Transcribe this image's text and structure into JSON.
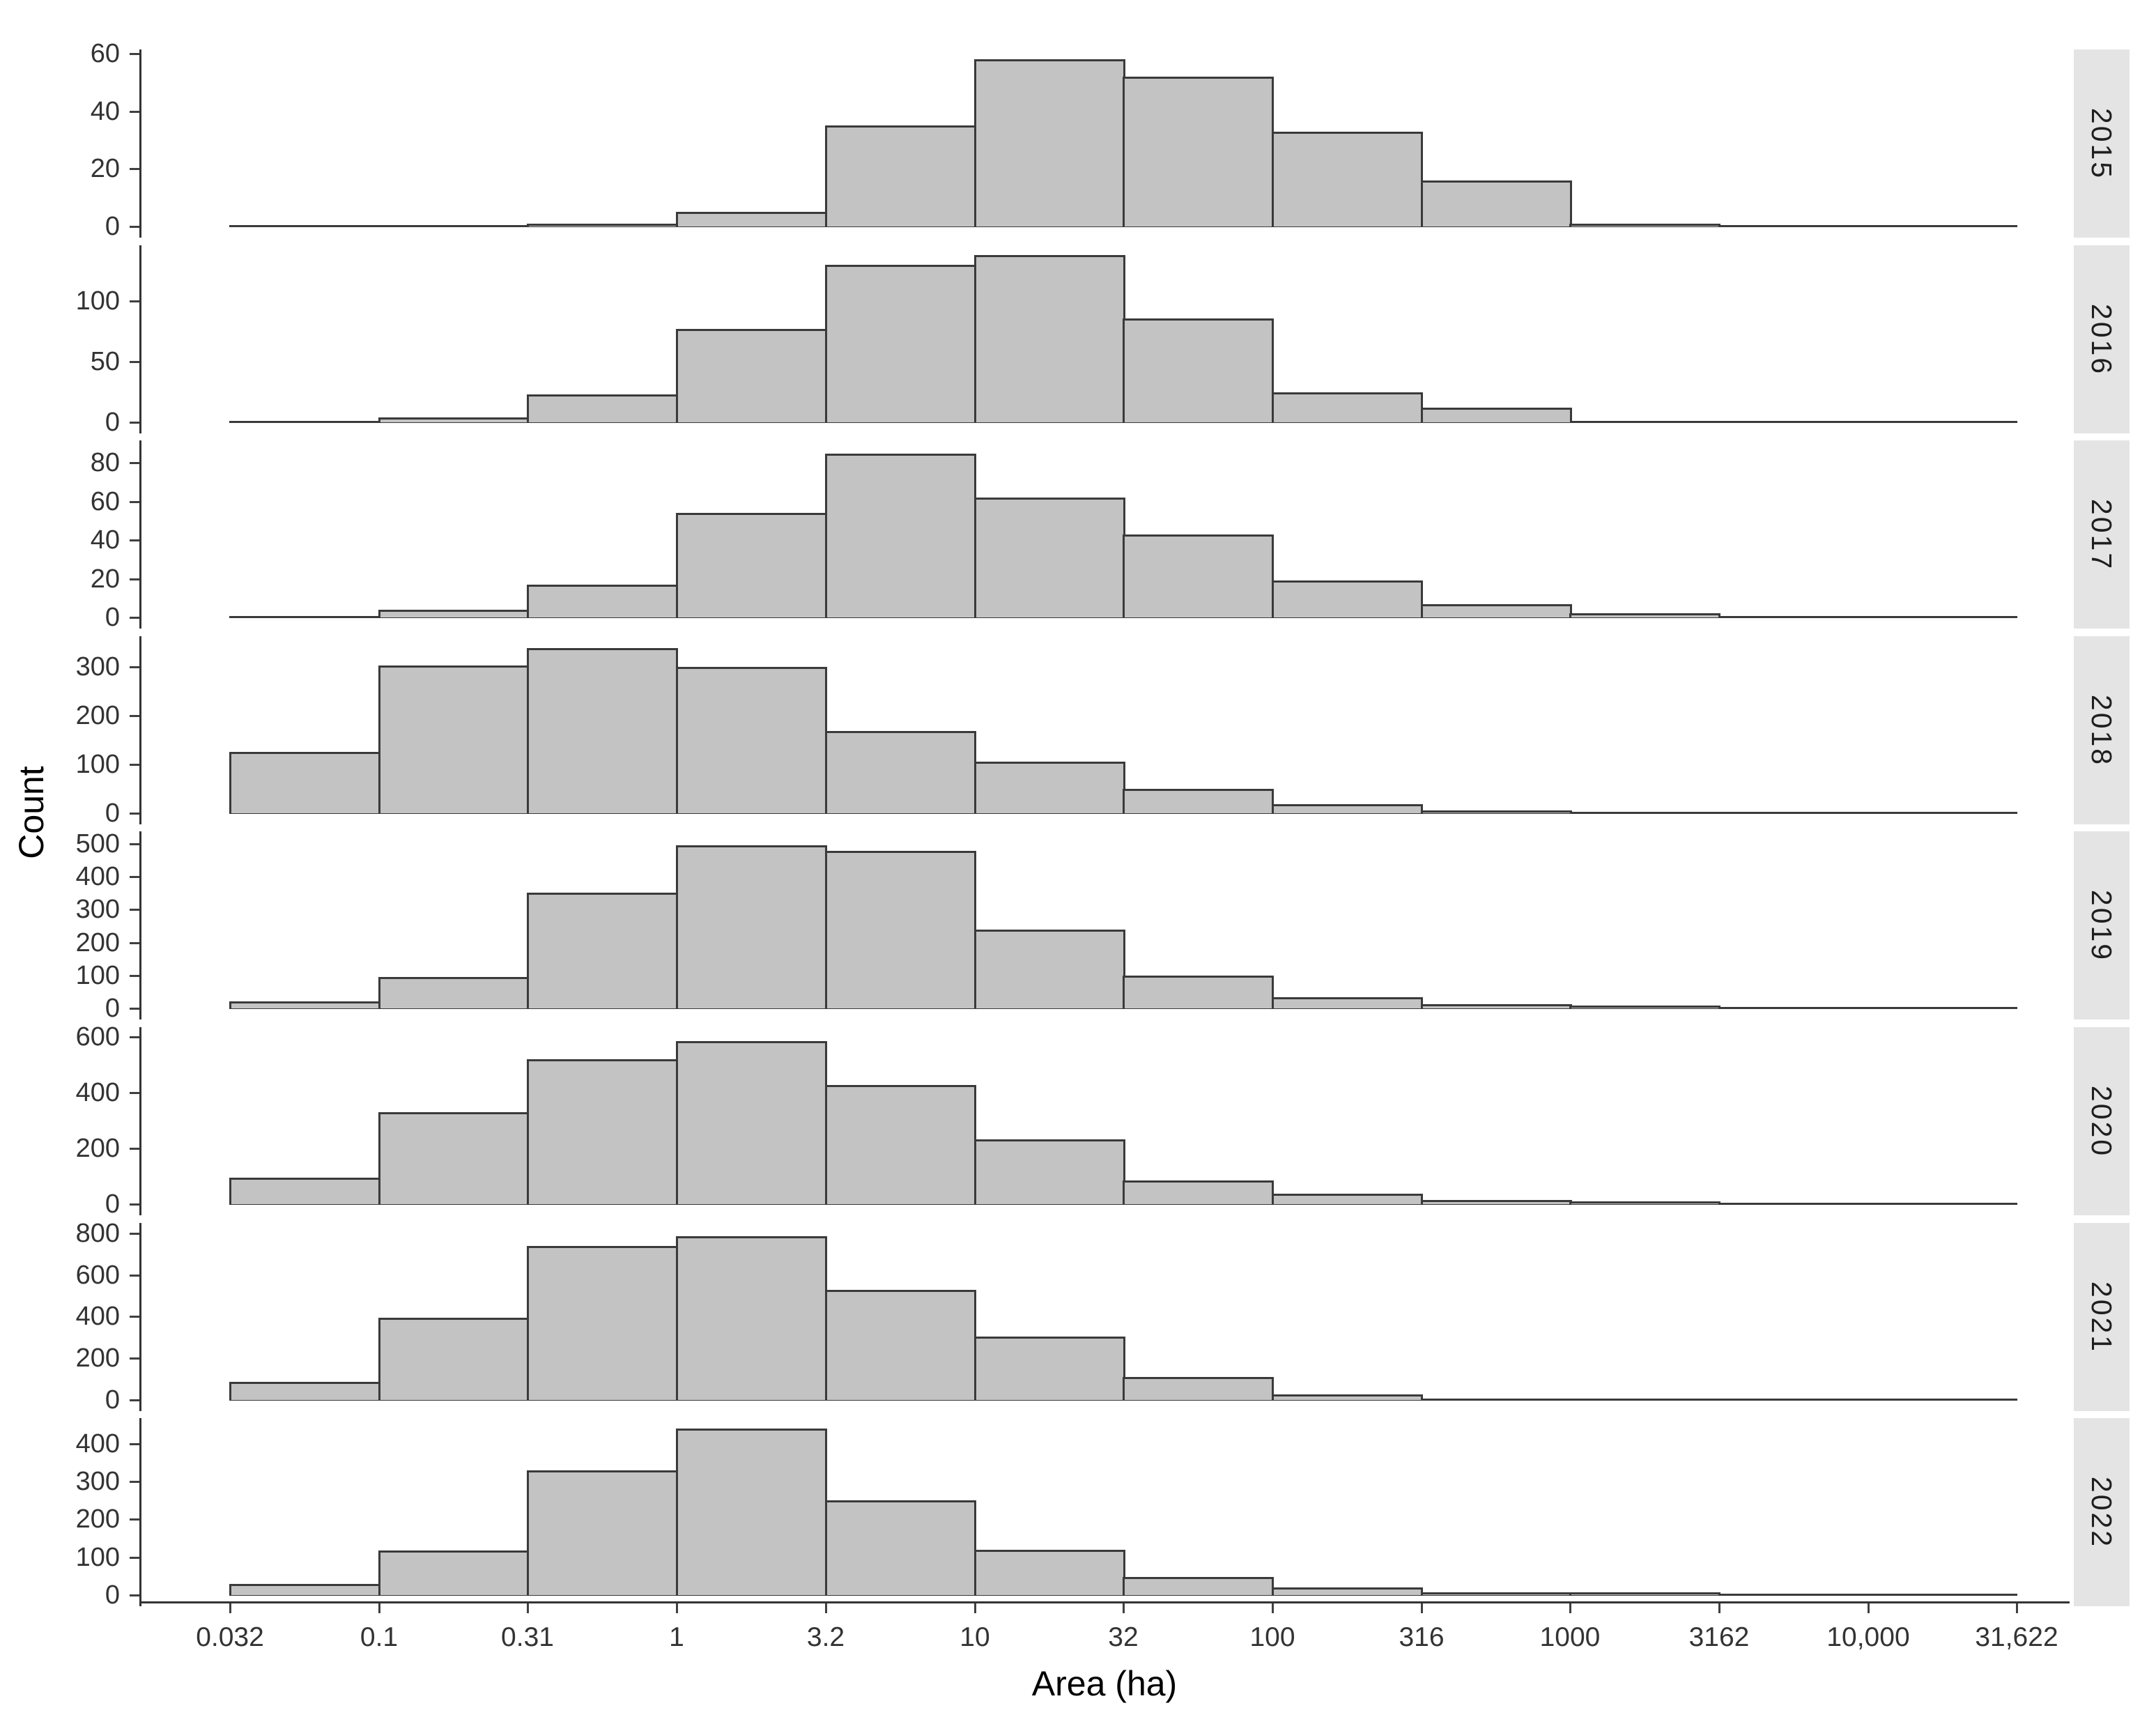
{
  "figure": {
    "x_axis_title": "Area (ha)",
    "y_axis_title": "Count"
  },
  "chart_data": {
    "type": "bar",
    "subtype": "faceted_histogram",
    "title": "",
    "xlabel": "Area (ha)",
    "ylabel": "Count",
    "x_scale": "log10",
    "grid": false,
    "legend_position": "none",
    "facet_strip_side": "right",
    "x_tick_labels": [
      "0.032",
      "0.1",
      "0.31",
      "1",
      "3.2",
      "10",
      "32",
      "100",
      "316",
      "1000",
      "3162",
      "10,000",
      "31,622"
    ],
    "bin_edges_ha": [
      0.032,
      0.1,
      0.31,
      1,
      3.2,
      10,
      32,
      100,
      316,
      1000,
      3162,
      10000,
      31622
    ],
    "facets": [
      {
        "label": "2015",
        "y_ticks": [
          0,
          20,
          40,
          60
        ],
        "ylim": [
          0,
          61
        ],
        "counts": [
          0,
          0,
          1,
          5,
          35,
          58,
          52,
          33,
          16,
          1,
          0,
          0
        ]
      },
      {
        "label": "2016",
        "y_ticks": [
          0,
          50,
          100
        ],
        "ylim": [
          0,
          145
        ],
        "counts": [
          0,
          4,
          23,
          77,
          130,
          138,
          86,
          25,
          12,
          0,
          0,
          0
        ]
      },
      {
        "label": "2017",
        "y_ticks": [
          0,
          20,
          40,
          60,
          80
        ],
        "ylim": [
          0,
          91
        ],
        "counts": [
          0,
          4,
          17,
          54,
          85,
          62,
          43,
          19,
          7,
          2,
          0,
          0
        ]
      },
      {
        "label": "2018",
        "y_ticks": [
          0,
          100,
          200,
          300
        ],
        "ylim": [
          0,
          360
        ],
        "counts": [
          125,
          303,
          338,
          300,
          168,
          105,
          50,
          19,
          6,
          0,
          0,
          0
        ]
      },
      {
        "label": "2019",
        "y_ticks": [
          0,
          100,
          200,
          300,
          400,
          500
        ],
        "ylim": [
          0,
          534
        ],
        "counts": [
          22,
          95,
          352,
          495,
          478,
          240,
          100,
          34,
          12,
          3,
          0,
          0
        ]
      },
      {
        "label": "2020",
        "y_ticks": [
          0,
          200,
          400,
          600
        ],
        "ylim": [
          0,
          630
        ],
        "counts": [
          95,
          330,
          520,
          585,
          428,
          233,
          85,
          38,
          14,
          3,
          0,
          0
        ]
      },
      {
        "label": "2021",
        "y_ticks": [
          0,
          200,
          400,
          600,
          800
        ],
        "ylim": [
          0,
          843
        ],
        "counts": [
          88,
          395,
          740,
          785,
          528,
          305,
          110,
          28,
          0,
          0,
          0,
          0
        ]
      },
      {
        "label": "2022",
        "y_ticks": [
          0,
          100,
          200,
          300,
          400
        ],
        "ylim": [
          0,
          464
        ],
        "counts": [
          30,
          118,
          330,
          440,
          250,
          120,
          48,
          20,
          8,
          2,
          0,
          0
        ]
      }
    ],
    "colors": {
      "bar_fill": "#c3c3c3",
      "bar_border": "#3a3a3a",
      "strip_background": "#e4e4e4",
      "axis_line": "#333333",
      "tick_text": "#333333",
      "title_text": "#000000",
      "panel_background": "#ffffff"
    }
  }
}
